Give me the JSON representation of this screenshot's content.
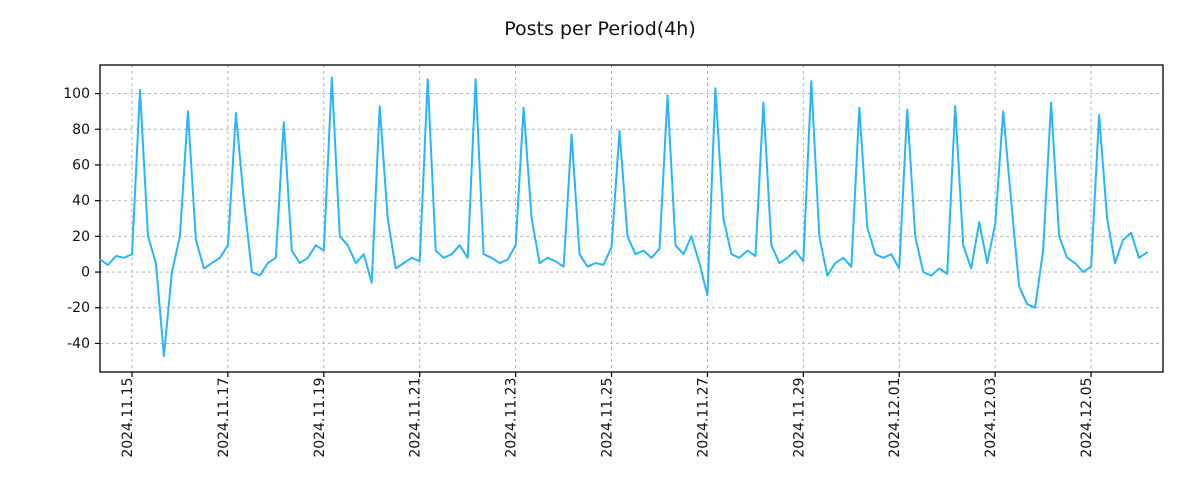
{
  "figure": {
    "title": "Posts per Period(4h)"
  },
  "chart_data": {
    "type": "line",
    "title": "Posts per Period(4h)",
    "period_hours": 4,
    "line_color": "#29b6f6",
    "grid": true,
    "grid_color": "#b0b0b0",
    "axis_color": "#000000",
    "ylim": [
      -56,
      116
    ],
    "y_ticks": [
      -40,
      -20,
      0,
      20,
      40,
      60,
      80,
      100
    ],
    "x_tick_labels": [
      "2024.11.15",
      "2024.11.17",
      "2024.11.19",
      "2024.11.21",
      "2024.11.23",
      "2024.11.25",
      "2024.11.27",
      "2024.11.29",
      "2024.12.01",
      "2024.12.03",
      "2024.12.05"
    ],
    "x_tick_indices": [
      4,
      16,
      28,
      40,
      52,
      64,
      76,
      88,
      100,
      112,
      124
    ],
    "values": [
      7,
      4,
      9,
      8,
      10,
      102,
      20,
      5,
      -47,
      0,
      20,
      90,
      18,
      2,
      5,
      8,
      15,
      89,
      40,
      0,
      -2,
      5,
      8,
      84,
      12,
      5,
      8,
      15,
      12,
      109,
      20,
      15,
      5,
      10,
      -6,
      93,
      30,
      2,
      5,
      8,
      6,
      108,
      12,
      8,
      10,
      15,
      8,
      108,
      10,
      8,
      5,
      7,
      15,
      92,
      30,
      5,
      8,
      6,
      3,
      77,
      10,
      3,
      5,
      4,
      14,
      79,
      20,
      10,
      12,
      8,
      13,
      99,
      15,
      10,
      20,
      5,
      -13,
      103,
      30,
      10,
      8,
      12,
      9,
      95,
      15,
      5,
      8,
      12,
      6,
      107,
      20,
      -2,
      5,
      8,
      3,
      92,
      25,
      10,
      8,
      10,
      2,
      91,
      20,
      0,
      -2,
      2,
      -1,
      93,
      15,
      2,
      28,
      5,
      27,
      90,
      40,
      -8,
      -18,
      -20,
      12,
      95,
      20,
      8,
      5,
      0,
      3,
      88,
      30,
      5,
      18,
      22,
      8,
      11
    ]
  }
}
